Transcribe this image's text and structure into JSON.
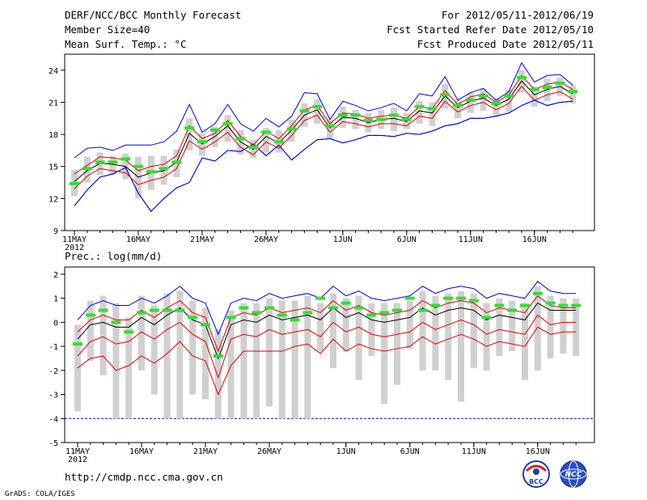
{
  "header": {
    "title": "DERF/NCC/BCC Monthly Forecast",
    "member": "Member Size=40",
    "variable": "Mean Surf. Temp.: °C",
    "period": "For 2012/05/11-2012/06/19",
    "started": "Fcst Started Refer Date 2012/05/10",
    "produced": "Fcst Produced Date 2012/05/11"
  },
  "footer": {
    "url": "http://cmdp.ncc.cma.gov.cn",
    "credit": "GrADS: COLA/IGES",
    "logo_left_text": "BCC",
    "logo_right_text": "NCC"
  },
  "colors": {
    "gray": "#d0d0d0",
    "green": "#33dd33",
    "red": "#dd0000",
    "blue": "#0000dd",
    "mean": "#000000"
  },
  "chart_data": [
    {
      "type": "line",
      "title": "Mean Surf. Temp.: °C",
      "x_ticks": [
        "11MAY",
        "16MAY",
        "21MAY",
        "26MAY",
        "1JUN",
        "6JUN",
        "11JUN",
        "16JUN"
      ],
      "x_ticks_day_index": [
        0,
        5,
        10,
        15,
        21,
        26,
        31,
        36
      ],
      "year_label": "2012",
      "ylim": [
        9,
        25.5
      ],
      "y_ticks": [
        9,
        12,
        15,
        18,
        21,
        24
      ],
      "series": [
        {
          "name": "max",
          "color": "blue",
          "values": [
            11.3,
            12.8,
            14.0,
            14.3,
            14.9,
            12.5,
            10.8,
            12.0,
            13.0,
            13.5,
            15.8,
            15.5,
            16.5,
            16.4,
            17.1,
            16.0,
            17.0,
            15.6,
            16.6,
            17.5,
            17.6,
            17.2,
            17.5,
            17.9,
            17.9,
            17.8,
            18.1,
            18.0,
            18.3,
            18.8,
            19.0,
            19.5,
            19.5,
            19.7,
            20.0,
            20.7,
            21.2,
            20.7,
            21.0,
            21.1
          ]
        },
        {
          "name": "ub",
          "color": "blue",
          "values": [
            15.8,
            16.7,
            16.8,
            16.5,
            17.0,
            17.0,
            17.0,
            17.3,
            18.3,
            20.8,
            18.2,
            19.0,
            20.8,
            19.0,
            18.3,
            19.5,
            18.7,
            19.7,
            21.9,
            21.8,
            19.4,
            21.1,
            20.7,
            20.2,
            20.5,
            20.9,
            20.2,
            21.8,
            21.6,
            23.4,
            21.2,
            21.9,
            22.3,
            21.2,
            22.0,
            24.7,
            22.9,
            23.5,
            23.6,
            22.6
          ]
        },
        {
          "name": "p90",
          "color": "red",
          "values": [
            14.3,
            15.1,
            15.9,
            15.8,
            15.6,
            14.6,
            15.0,
            15.2,
            16.0,
            18.8,
            17.6,
            18.1,
            19.3,
            17.8,
            17.0,
            18.3,
            17.6,
            18.8,
            20.3,
            20.7,
            19.0,
            20.0,
            19.9,
            19.5,
            19.7,
            19.8,
            19.5,
            20.6,
            20.4,
            22.1,
            20.8,
            21.5,
            21.8,
            21.0,
            21.7,
            23.5,
            22.2,
            22.7,
            22.9,
            22.2
          ]
        },
        {
          "name": "mean",
          "color": "mean",
          "values": [
            13.6,
            14.6,
            15.3,
            15.2,
            15.0,
            14.0,
            14.4,
            14.6,
            15.4,
            18.1,
            17.1,
            17.8,
            18.8,
            17.3,
            16.6,
            17.8,
            17.2,
            18.4,
            19.8,
            20.3,
            18.6,
            19.6,
            19.5,
            19.1,
            19.4,
            19.5,
            19.2,
            20.2,
            20.0,
            21.6,
            20.5,
            21.1,
            21.4,
            20.7,
            21.3,
            23.0,
            21.7,
            22.2,
            22.5,
            21.8
          ]
        },
        {
          "name": "p10",
          "color": "red",
          "values": [
            12.9,
            14.1,
            14.8,
            14.6,
            14.4,
            13.3,
            13.7,
            14.0,
            14.8,
            17.4,
            16.6,
            17.3,
            18.2,
            16.8,
            16.1,
            17.3,
            16.7,
            17.9,
            19.3,
            19.8,
            18.2,
            19.2,
            19.0,
            18.7,
            19.0,
            19.0,
            18.8,
            19.7,
            19.5,
            21.1,
            20.1,
            20.7,
            21.0,
            20.3,
            20.9,
            22.5,
            21.2,
            21.7,
            22.0,
            21.3
          ]
        },
        {
          "name": "min",
          "color": "blue",
          "values": [
            11.3,
            12.8,
            14.0,
            14.3,
            14.9,
            12.5,
            10.8,
            12.0,
            13.0,
            13.5,
            15.8,
            15.5,
            16.5,
            16.4,
            17.1,
            16.0,
            17.0,
            15.6,
            16.6,
            17.5,
            17.6,
            17.2,
            17.5,
            17.9,
            17.9,
            17.8,
            18.1,
            18.0,
            18.3,
            18.8,
            19.0,
            19.5,
            19.5,
            19.7,
            20.0,
            20.7,
            21.2,
            20.7,
            21.0,
            21.1
          ]
        },
        {
          "name": "box_low",
          "color": "gray",
          "values": [
            12.2,
            13.5,
            14.2,
            14.2,
            13.8,
            12.0,
            12.8,
            13.3,
            14.0,
            16.5,
            16.0,
            16.8,
            17.3,
            16.1,
            15.8,
            16.3,
            16.3,
            17.3,
            18.7,
            19.0,
            17.6,
            18.6,
            18.5,
            18.2,
            18.5,
            18.3,
            18.5,
            19.0,
            18.8,
            20.4,
            19.5,
            20.0,
            20.2,
            19.7,
            20.1,
            21.9,
            20.6,
            21.1,
            21.6,
            20.9
          ]
        },
        {
          "name": "box_high",
          "color": "gray",
          "values": [
            14.7,
            15.9,
            16.3,
            16.0,
            16.2,
            15.9,
            16.0,
            16.0,
            16.6,
            19.5,
            18.1,
            18.7,
            19.8,
            18.4,
            17.5,
            18.6,
            18.4,
            19.4,
            20.9,
            21.3,
            19.4,
            20.6,
            20.3,
            20.0,
            20.3,
            20.5,
            20.0,
            21.1,
            21.0,
            22.7,
            21.2,
            21.9,
            22.3,
            21.4,
            22.2,
            24.0,
            22.5,
            23.2,
            23.3,
            22.6
          ]
        },
        {
          "name": "observed",
          "color": "green",
          "values": [
            13.4,
            14.8,
            15.4,
            15.4,
            15.7,
            15.0,
            14.5,
            14.8,
            15.4,
            18.6,
            17.3,
            18.4,
            19.0,
            17.6,
            16.8,
            18.2,
            17.3,
            18.5,
            20.2,
            20.6,
            18.8,
            19.8,
            19.8,
            19.3,
            19.4,
            19.8,
            19.4,
            20.6,
            20.4,
            21.7,
            20.7,
            21.2,
            21.6,
            20.9,
            21.6,
            23.3,
            22.2,
            22.4,
            22.8,
            22.0
          ]
        }
      ]
    },
    {
      "type": "line",
      "title": "Prec.: log(mm/d)",
      "x_ticks": [
        "11MAY",
        "16MAY",
        "21MAY",
        "26MAY",
        "1JUN",
        "6JUN",
        "11JUN",
        "16JUN"
      ],
      "x_ticks_day_index": [
        0,
        5,
        10,
        15,
        21,
        26,
        31,
        36
      ],
      "year_label": "2012",
      "ylim": [
        -5,
        2.3
      ],
      "y_ticks": [
        -5,
        -4,
        -3,
        -2,
        -1,
        0,
        1,
        2
      ],
      "reference_line": -4,
      "series": [
        {
          "name": "ub",
          "color": "blue",
          "values": [
            0.1,
            0.7,
            0.9,
            0.7,
            0.7,
            1.0,
            0.8,
            1.1,
            1.5,
            1.0,
            0.8,
            -0.5,
            0.8,
            1.0,
            0.9,
            1.2,
            1.0,
            1.1,
            1.2,
            1.0,
            1.5,
            1.1,
            1.3,
            1.0,
            0.9,
            1.0,
            1.1,
            1.5,
            1.2,
            1.4,
            1.5,
            1.4,
            1.0,
            1.2,
            1.1,
            1.0,
            1.7,
            1.3,
            1.2,
            1.2
          ]
        },
        {
          "name": "p90",
          "color": "red",
          "values": [
            -0.4,
            0.1,
            0.3,
            0.1,
            0.1,
            0.5,
            0.2,
            0.6,
            0.9,
            0.4,
            0.2,
            -1.2,
            0.2,
            0.4,
            0.3,
            0.6,
            0.4,
            0.5,
            0.6,
            0.4,
            0.9,
            0.5,
            0.7,
            0.4,
            0.3,
            0.4,
            0.5,
            0.9,
            0.6,
            0.8,
            0.9,
            0.8,
            0.4,
            0.6,
            0.5,
            0.4,
            1.1,
            0.7,
            0.6,
            0.6
          ]
        },
        {
          "name": "mean",
          "color": "mean",
          "values": [
            -0.7,
            -0.1,
            0.0,
            -0.2,
            -0.2,
            0.2,
            -0.1,
            0.3,
            0.6,
            0.1,
            -0.1,
            -1.5,
            -0.1,
            0.1,
            0.0,
            0.3,
            0.1,
            0.2,
            0.3,
            0.1,
            0.6,
            0.2,
            0.4,
            0.1,
            0.0,
            0.1,
            0.2,
            0.6,
            0.3,
            0.5,
            0.6,
            0.5,
            0.1,
            0.3,
            0.2,
            0.1,
            0.8,
            0.5,
            0.5,
            0.5
          ]
        },
        {
          "name": "p10",
          "color": "red",
          "values": [
            -1.4,
            -0.8,
            -0.6,
            -0.9,
            -0.8,
            -0.4,
            -0.7,
            -0.3,
            0.0,
            -0.5,
            -0.8,
            -2.3,
            -0.7,
            -0.5,
            -0.6,
            -0.3,
            -0.5,
            -0.4,
            -0.3,
            -0.6,
            0.0,
            -0.4,
            -0.2,
            -0.5,
            -0.6,
            -0.5,
            -0.4,
            0.0,
            -0.3,
            -0.1,
            0.1,
            -0.1,
            -0.5,
            -0.3,
            -0.4,
            -0.5,
            0.3,
            -0.1,
            0.0,
            0.0
          ]
        },
        {
          "name": "lb",
          "color": "red",
          "values": [
            -1.9,
            -1.5,
            -1.4,
            -2.0,
            -1.8,
            -1.4,
            -1.7,
            -1.3,
            -0.8,
            -1.4,
            -1.6,
            -3.0,
            -1.8,
            -1.2,
            -1.2,
            -1.2,
            -1.2,
            -1.0,
            -0.9,
            -1.3,
            -0.7,
            -1.2,
            -0.9,
            -1.1,
            -1.2,
            -1.1,
            -1.0,
            -0.6,
            -0.9,
            -0.7,
            -0.5,
            -0.7,
            -1.0,
            -0.8,
            -0.9,
            -1.0,
            -0.2,
            -0.5,
            -0.4,
            -0.4
          ]
        },
        {
          "name": "box_low",
          "color": "gray",
          "values": [
            -3.7,
            -1.6,
            -2.2,
            -4.0,
            -4.0,
            -2.0,
            -3.0,
            -4.0,
            -4.0,
            -3.0,
            -3.2,
            -4.0,
            -4.0,
            -4.0,
            -4.0,
            -3.5,
            -4.0,
            -4.0,
            -4.0,
            -1.2,
            -1.9,
            -1.2,
            -2.4,
            -1.4,
            -3.4,
            -2.6,
            -1.1,
            -2.0,
            -2.0,
            -2.4,
            -3.3,
            -1.9,
            -2.0,
            -1.4,
            -1.2,
            -2.4,
            -2.0,
            -1.5,
            -1.3,
            -1.4
          ]
        },
        {
          "name": "box_high",
          "color": "gray",
          "values": [
            -0.1,
            0.9,
            1.1,
            0.8,
            0.2,
            1.1,
            0.7,
            1.2,
            1.3,
            0.9,
            0.6,
            -0.3,
            0.5,
            0.8,
            0.8,
            1.0,
            0.9,
            0.9,
            1.1,
            0.8,
            1.2,
            1.0,
            1.1,
            0.8,
            0.8,
            0.8,
            0.9,
            1.3,
            1.1,
            1.2,
            1.3,
            1.2,
            0.8,
            1.0,
            0.9,
            0.8,
            1.5,
            1.1,
            1.0,
            1.0
          ]
        },
        {
          "name": "observed",
          "color": "green",
          "values": [
            -0.9,
            0.3,
            0.5,
            0.0,
            -0.4,
            0.4,
            0.5,
            0.5,
            0.5,
            0.2,
            -0.1,
            -1.4,
            0.2,
            0.6,
            0.4,
            0.6,
            0.3,
            0.1,
            0.4,
            1.0,
            0.6,
            0.8,
            0.6,
            0.3,
            0.4,
            0.5,
            1.0,
            0.5,
            0.7,
            1.0,
            1.0,
            0.9,
            0.2,
            0.7,
            0.5,
            0.7,
            1.2,
            0.8,
            0.7,
            0.7
          ]
        }
      ]
    }
  ]
}
